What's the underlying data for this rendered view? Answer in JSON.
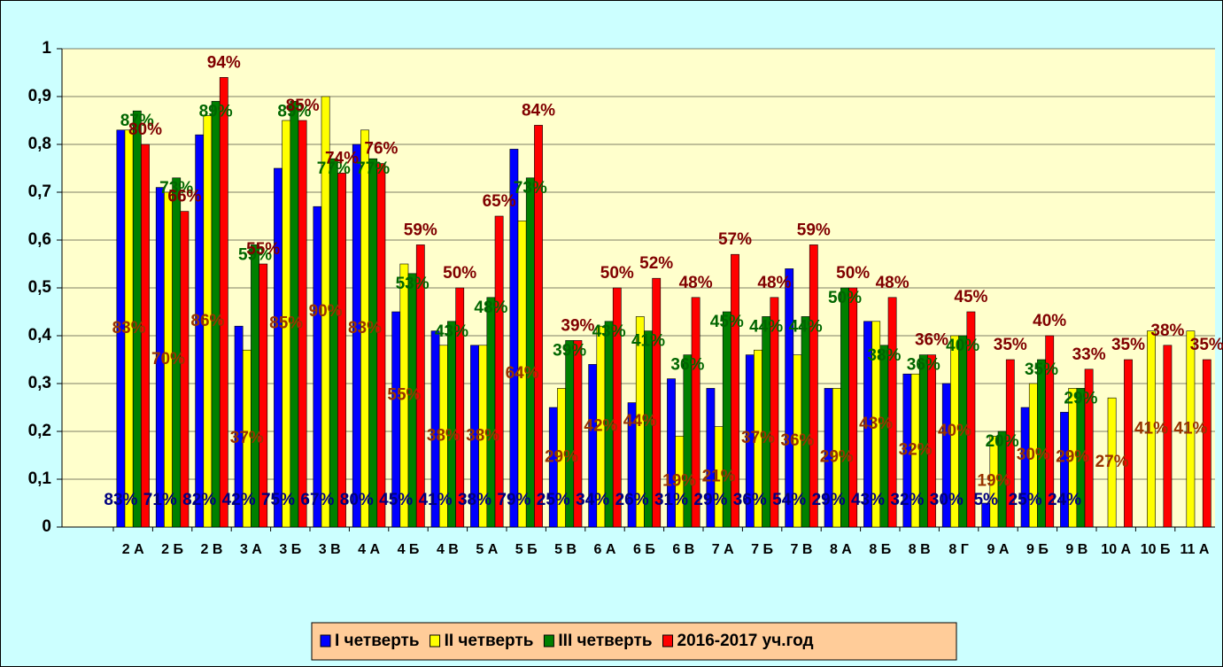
{
  "chart_data": {
    "type": "bar",
    "categories": [
      "2 А",
      "2 Б",
      "2 В",
      "3 А",
      "3 Б",
      "3 В",
      "4 А",
      "4 Б",
      "4 В",
      "5 А",
      "5 Б",
      "5 В",
      "6 А",
      "6 Б",
      "6 В",
      "7 А",
      "7 Б",
      "7 В",
      "8 А",
      "8 Б",
      "8 В",
      "8 Г",
      "9 А",
      "9 Б",
      "9 В",
      "10 А",
      "10 Б",
      "11 А"
    ],
    "series": [
      {
        "name": "I четверть",
        "color": "#0000ff",
        "values": [
          0.83,
          0.71,
          0.82,
          0.42,
          0.75,
          0.67,
          0.8,
          0.45,
          0.41,
          0.38,
          0.79,
          0.25,
          0.34,
          0.26,
          0.31,
          0.29,
          0.36,
          0.54,
          0.29,
          0.43,
          0.32,
          0.3,
          0.05,
          0.25,
          0.24,
          null,
          null,
          null
        ],
        "value_labels": [
          "83%",
          "71%",
          "82%",
          "42%",
          "75%",
          "67%",
          "80%",
          "45%",
          "41%",
          "38%",
          "79%",
          "25%",
          "34%",
          "26%",
          "31%",
          "29%",
          "36%",
          "54%",
          "29%",
          "43%",
          "32%",
          "30%",
          "5%",
          "25%",
          "24%",
          null,
          null,
          null
        ]
      },
      {
        "name": "II четверть",
        "color": "#ffff00",
        "values": [
          0.83,
          0.7,
          0.86,
          0.37,
          0.85,
          0.9,
          0.83,
          0.55,
          0.38,
          0.38,
          0.64,
          0.29,
          0.42,
          0.44,
          0.19,
          0.21,
          0.37,
          0.36,
          0.29,
          0.43,
          0.32,
          0.4,
          0.19,
          0.3,
          0.29,
          0.27,
          0.41,
          0.41
        ],
        "value_labels": [
          "83%",
          "70%",
          "86%",
          "37%",
          "85%",
          "90%",
          "83%",
          "55%",
          "38%",
          "38%",
          "64%",
          "29%",
          "42%",
          "44%",
          "19%",
          "21%",
          "37%",
          "36%",
          "29%",
          "43%",
          "32%",
          "40%",
          "19%",
          "30%",
          "29%",
          "27%",
          "41%",
          "41%"
        ]
      },
      {
        "name": "III четверть",
        "color": "#008000",
        "values": [
          0.87,
          0.73,
          0.89,
          0.59,
          0.89,
          0.77,
          0.77,
          0.53,
          0.43,
          0.48,
          0.73,
          0.39,
          0.43,
          0.41,
          0.36,
          0.45,
          0.44,
          0.44,
          0.5,
          0.38,
          0.36,
          0.4,
          0.2,
          0.35,
          0.29,
          null,
          null,
          null
        ],
        "value_labels": [
          "87%",
          "73%",
          "89%",
          "59%",
          "89%",
          "77%",
          "77%",
          "53%",
          "43%",
          "48%",
          "73%",
          "39%",
          "43%",
          "41%",
          "36%",
          "45%",
          "44%",
          "44%",
          "50%",
          "38%",
          "36%",
          "40%",
          "20%",
          "35%",
          "29%",
          null,
          null,
          null
        ]
      },
      {
        "name": "2016-2017 уч.год",
        "color": "#ff0000",
        "values": [
          0.8,
          0.66,
          0.94,
          0.55,
          0.85,
          0.74,
          0.76,
          0.59,
          0.5,
          0.65,
          0.84,
          0.39,
          0.5,
          0.52,
          0.48,
          0.57,
          0.48,
          0.59,
          0.5,
          0.48,
          0.36,
          0.45,
          0.35,
          0.4,
          0.33,
          0.35,
          0.38,
          0.35
        ],
        "value_labels": [
          "80%",
          "66%",
          "94%",
          "55%",
          "85%",
          "74%",
          "76%",
          "59%",
          "50%",
          "65%",
          "84%",
          "39%",
          "50%",
          "52%",
          "48%",
          "57%",
          "48%",
          "59%",
          "50%",
          "48%",
          "36%",
          "45%",
          "35%",
          "40%",
          "33%",
          "35%",
          "38%",
          "35%"
        ]
      }
    ],
    "ylim": [
      0,
      1
    ],
    "yticks": [
      0,
      {
        "value": 0.1,
        "label": "0,1"
      },
      {
        "value": 0.2,
        "label": "0,2"
      },
      {
        "value": 0.3,
        "label": "0,3"
      },
      {
        "value": 0.4,
        "label": "0,4"
      },
      {
        "value": 0.5,
        "label": "0,5"
      },
      {
        "value": 0.6,
        "label": "0,6"
      },
      {
        "value": 0.7,
        "label": "0,7"
      },
      {
        "value": 0.8,
        "label": "0,8"
      },
      {
        "value": 0.9,
        "label": "0,9"
      },
      1
    ],
    "grid": true,
    "legend": "bottom"
  }
}
